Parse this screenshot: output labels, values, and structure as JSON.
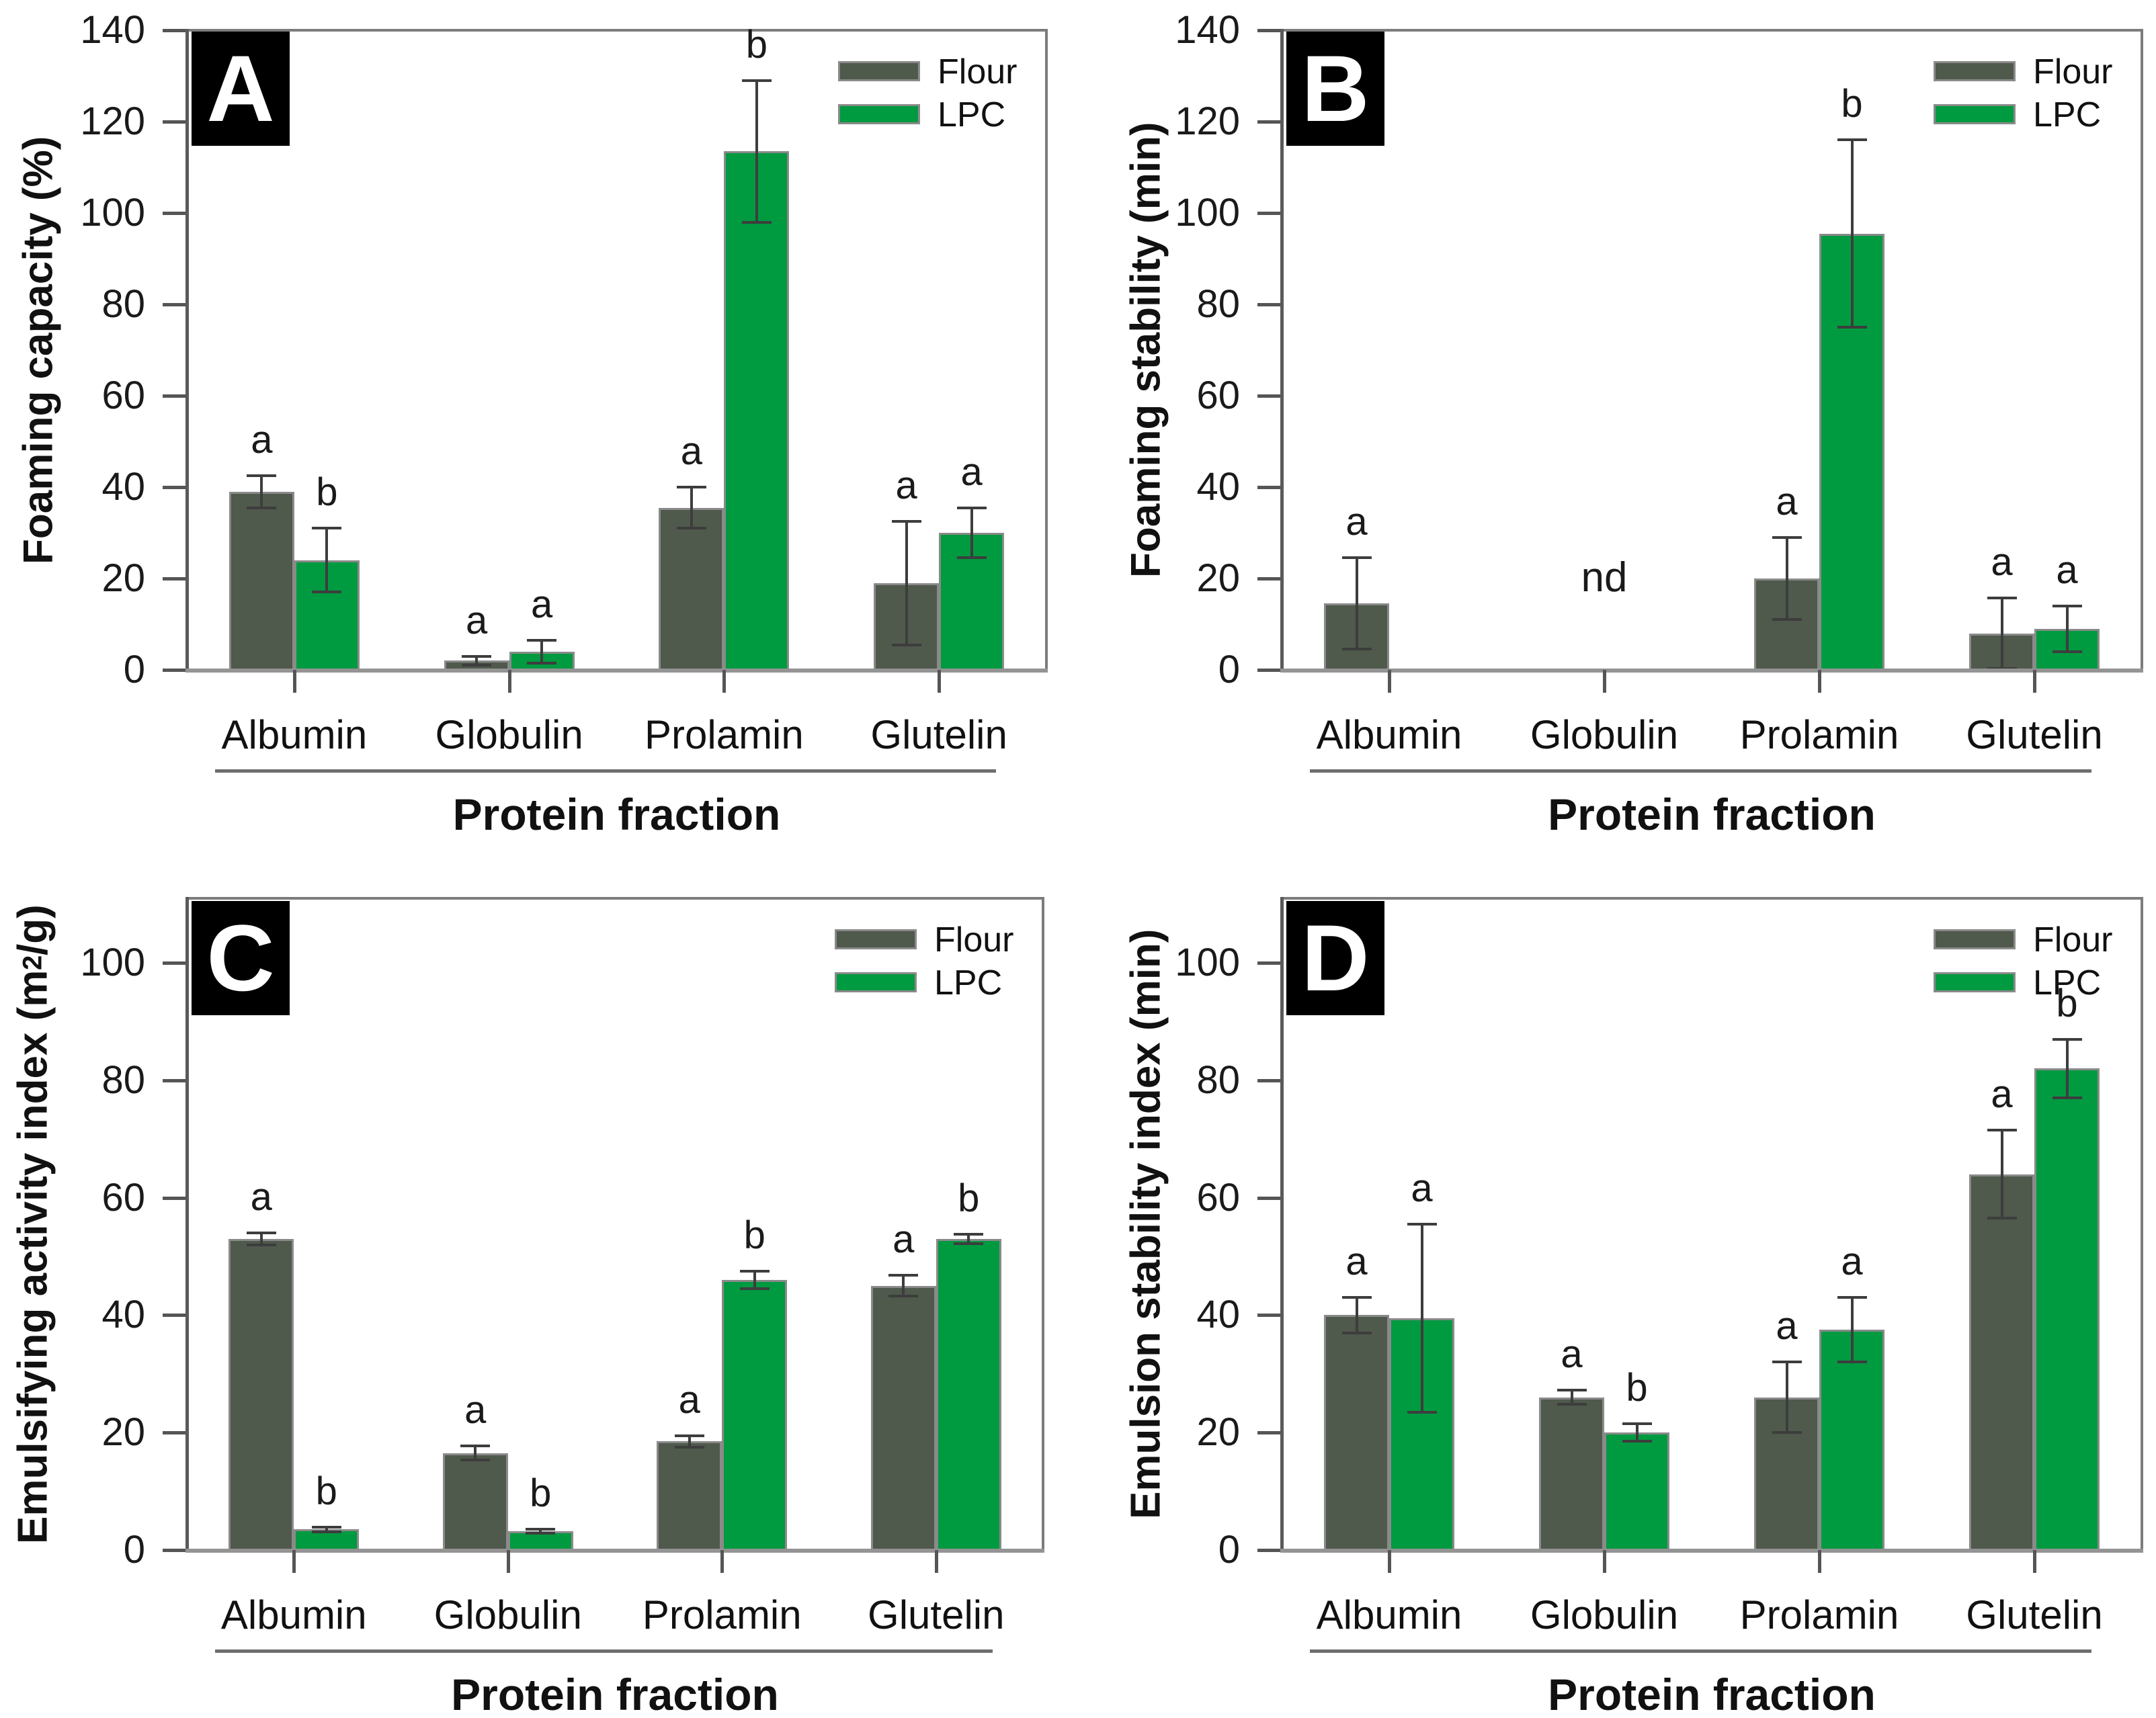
{
  "figure": {
    "x_axis_title": "Protein fraction",
    "categories": [
      "Albumin",
      "Globulin",
      "Prolamin",
      "Glutelin"
    ],
    "colors": {
      "flour_bar": "#4f594c",
      "lpc_bar": "#009a40",
      "bar_border": "#8a8a8a",
      "error_bar": "#3d3d3d",
      "frame": "#7c7c7c",
      "baseline": "#949494",
      "panel_box_bg": "#000000",
      "panel_box_text": "#ffffff"
    }
  },
  "chart_data": [
    {
      "type": "bar",
      "panel": "A",
      "title": "",
      "ylabel_segments": [
        {
          "t": "Foaming capacity (%)"
        }
      ],
      "xlabel": "Protein fraction",
      "ylim": [
        0,
        140
      ],
      "yticks": [
        0,
        20,
        40,
        60,
        80,
        100,
        120,
        140
      ],
      "grid": false,
      "legend_position": "top-right-inside",
      "categories": [
        "Albumin",
        "Globulin",
        "Prolamin",
        "Glutelin"
      ],
      "series": [
        {
          "name": "Flour",
          "color": "#4f594c",
          "values": [
            39,
            2,
            35.5,
            19
          ],
          "errors": [
            3.5,
            1,
            4.5,
            13.5
          ],
          "letters": [
            "a",
            "a",
            "a",
            "a"
          ]
        },
        {
          "name": "LPC",
          "color": "#009a40",
          "values": [
            24,
            4,
            113.5,
            30
          ],
          "errors": [
            7,
            2.5,
            15.5,
            5.5
          ],
          "letters": [
            "b",
            "a",
            "b",
            "a"
          ]
        }
      ],
      "annotations": []
    },
    {
      "type": "bar",
      "panel": "B",
      "title": "",
      "ylabel_segments": [
        {
          "t": "Foaming stability (min)"
        }
      ],
      "xlabel": "Protein fraction",
      "ylim": [
        0,
        140
      ],
      "yticks": [
        0,
        20,
        40,
        60,
        80,
        100,
        120,
        140
      ],
      "grid": false,
      "legend_position": "top-right-inside",
      "categories": [
        "Albumin",
        "Globulin",
        "Prolamin",
        "Glutelin"
      ],
      "series": [
        {
          "name": "Flour",
          "color": "#4f594c",
          "values": [
            14.5,
            null,
            20,
            8
          ],
          "errors": [
            10,
            null,
            9,
            7.7
          ],
          "letters": [
            "a",
            null,
            "a",
            "a"
          ]
        },
        {
          "name": "LPC",
          "color": "#009a40",
          "values": [
            null,
            null,
            95.5,
            9
          ],
          "errors": [
            null,
            null,
            20.5,
            5
          ],
          "letters": [
            null,
            null,
            "b",
            "a"
          ]
        }
      ],
      "annotations": [
        {
          "category": "Globulin",
          "text": "nd"
        }
      ]
    },
    {
      "type": "bar",
      "panel": "C",
      "title": "",
      "ylabel_segments": [
        {
          "t": "Emulsifying activity index (m"
        },
        {
          "t": "2",
          "sup": true
        },
        {
          "t": "/g)"
        }
      ],
      "xlabel": "Protein fraction",
      "ylim": [
        0,
        111
      ],
      "yticks": [
        0,
        20,
        40,
        60,
        80,
        100
      ],
      "grid": false,
      "legend_position": "top-right-inside",
      "categories": [
        "Albumin",
        "Globulin",
        "Prolamin",
        "Glutelin"
      ],
      "series": [
        {
          "name": "Flour",
          "color": "#4f594c",
          "values": [
            53,
            16.5,
            18.5,
            45
          ],
          "errors": [
            1,
            1.2,
            1,
            1.8
          ],
          "letters": [
            "a",
            "a",
            "a",
            "a"
          ]
        },
        {
          "name": "LPC",
          "color": "#009a40",
          "values": [
            3.5,
            3.2,
            46,
            53
          ],
          "errors": [
            0.4,
            0.3,
            1.5,
            0.8
          ],
          "letters": [
            "b",
            "b",
            "b",
            "b"
          ]
        }
      ],
      "annotations": []
    },
    {
      "type": "bar",
      "panel": "D",
      "title": "",
      "ylabel_segments": [
        {
          "t": "Emulsion stability index (min)"
        }
      ],
      "xlabel": "Protein fraction",
      "ylim": [
        0,
        111
      ],
      "yticks": [
        0,
        20,
        40,
        60,
        80,
        100
      ],
      "grid": false,
      "legend_position": "top-right-inside",
      "categories": [
        "Albumin",
        "Globulin",
        "Prolamin",
        "Glutelin"
      ],
      "series": [
        {
          "name": "Flour",
          "color": "#4f594c",
          "values": [
            40,
            26,
            26,
            64
          ],
          "errors": [
            3,
            1.2,
            6,
            7.5
          ],
          "letters": [
            "a",
            "a",
            "a",
            "a"
          ]
        },
        {
          "name": "LPC",
          "color": "#009a40",
          "values": [
            39.5,
            20,
            37.5,
            82
          ],
          "errors": [
            16,
            1.5,
            5.5,
            5
          ],
          "letters": [
            "a",
            "b",
            "a",
            "b"
          ]
        }
      ],
      "annotations": []
    }
  ]
}
